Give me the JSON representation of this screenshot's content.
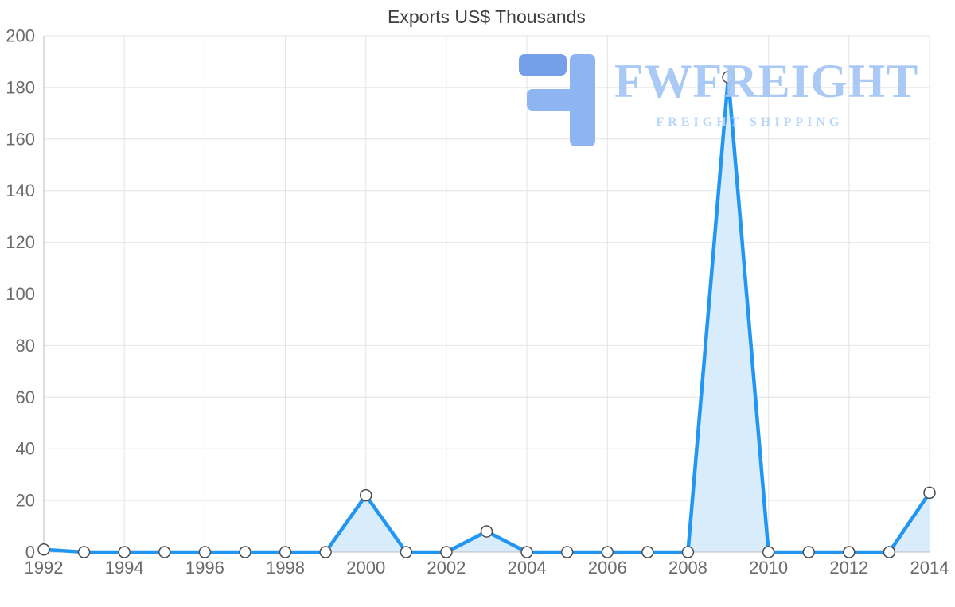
{
  "page": {
    "title": "Exports US$ Thousands"
  },
  "watermark": {
    "brand": "FWFREIGHT",
    "tagline": "FREIGHT SHIPPING",
    "colors": {
      "glyph_dark": "#6f9ae9",
      "glyph": "#8ab1f2",
      "brand": "#a6c8f5",
      "tagline": "#b5d5f8"
    }
  },
  "chart_data": {
    "type": "area",
    "title": "Exports US$ Thousands",
    "xlabel": "",
    "ylabel": "",
    "x": [
      1992,
      1993,
      1994,
      1995,
      1996,
      1997,
      1998,
      1999,
      2000,
      2001,
      2002,
      2003,
      2004,
      2005,
      2006,
      2007,
      2008,
      2009,
      2010,
      2011,
      2012,
      2013,
      2014
    ],
    "series": [
      {
        "name": "Exports US$ Thousands",
        "values": [
          1,
          0,
          0,
          0,
          0,
          0,
          0,
          0,
          22,
          0,
          0,
          8,
          0,
          0,
          0,
          0,
          0,
          184,
          0,
          0,
          0,
          0,
          23
        ]
      }
    ],
    "ylim": [
      0,
      200
    ],
    "y_ticks": [
      0,
      20,
      40,
      60,
      80,
      100,
      120,
      140,
      160,
      180,
      200
    ],
    "x_ticks": [
      1992,
      1994,
      1996,
      1998,
      2000,
      2002,
      2004,
      2006,
      2008,
      2010,
      2012,
      2014
    ],
    "grid": true,
    "legend": false,
    "marker_shape": "circle",
    "colors": {
      "line": "#2196f3",
      "fill": "#d9ecfc",
      "marker_fill": "#ffffff",
      "marker_stroke": "#4d4d4d",
      "grid": "#e4e4e4",
      "axis": "#bdbdbd",
      "tick_text": "#6b6b6b",
      "title_text": "#3f3f3f"
    }
  }
}
